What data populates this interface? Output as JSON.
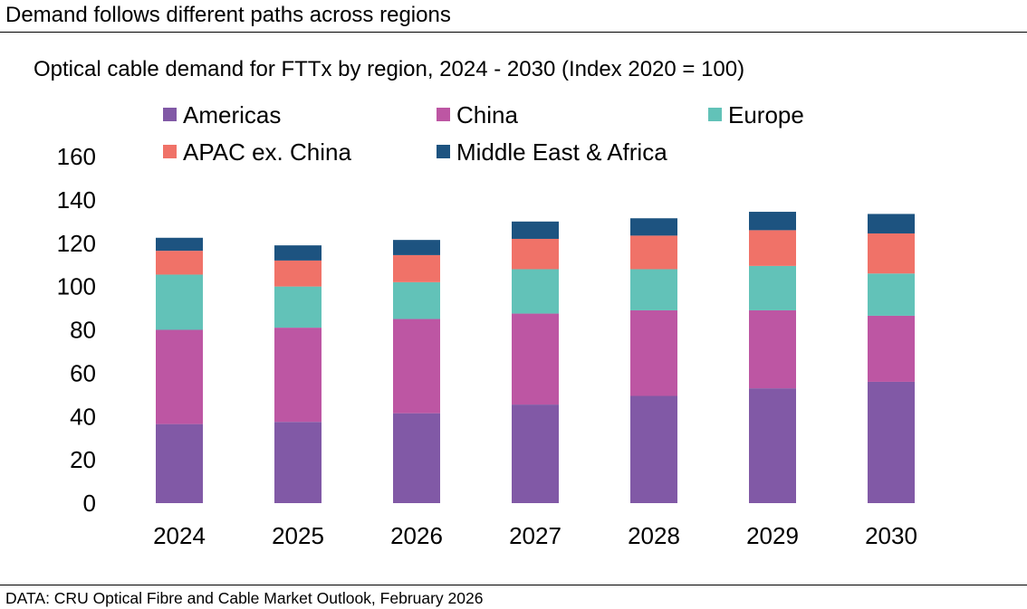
{
  "header": {
    "headline": "Demand follows different paths across regions",
    "source": "DATA: CRU Optical Fibre and Cable Market Outlook, February 2026"
  },
  "chart_data": {
    "type": "bar",
    "stacked": true,
    "title": "Optical cable demand for FTTx by region, 2024 - 2030 (Index 2020 = 100)",
    "xlabel": "",
    "ylabel": "",
    "ylim": [
      0,
      160
    ],
    "yticks": [
      0,
      20,
      40,
      60,
      80,
      100,
      120,
      140,
      160
    ],
    "grid": false,
    "legend_position": "top",
    "categories": [
      "2024",
      "2025",
      "2026",
      "2027",
      "2028",
      "2029",
      "2030"
    ],
    "series": [
      {
        "name": "Americas",
        "color": "#8159a6",
        "values": [
          36.5,
          37.5,
          41.5,
          45.5,
          49.5,
          53,
          56
        ]
      },
      {
        "name": "China",
        "color": "#bd56a3",
        "values": [
          43.5,
          43.5,
          43.5,
          42,
          39.5,
          36,
          30.5
        ]
      },
      {
        "name": "Europe",
        "color": "#62c2b8",
        "values": [
          25.5,
          19,
          17,
          20.5,
          19,
          20.5,
          19.5
        ]
      },
      {
        "name": "APAC ex. China",
        "color": "#f07268",
        "values": [
          11,
          12,
          12.5,
          14,
          15.5,
          16.5,
          18.5
        ]
      },
      {
        "name": "Middle East & Africa",
        "color": "#1d5380",
        "values": [
          6,
          7,
          7,
          8,
          8,
          8.5,
          9
        ]
      }
    ]
  }
}
